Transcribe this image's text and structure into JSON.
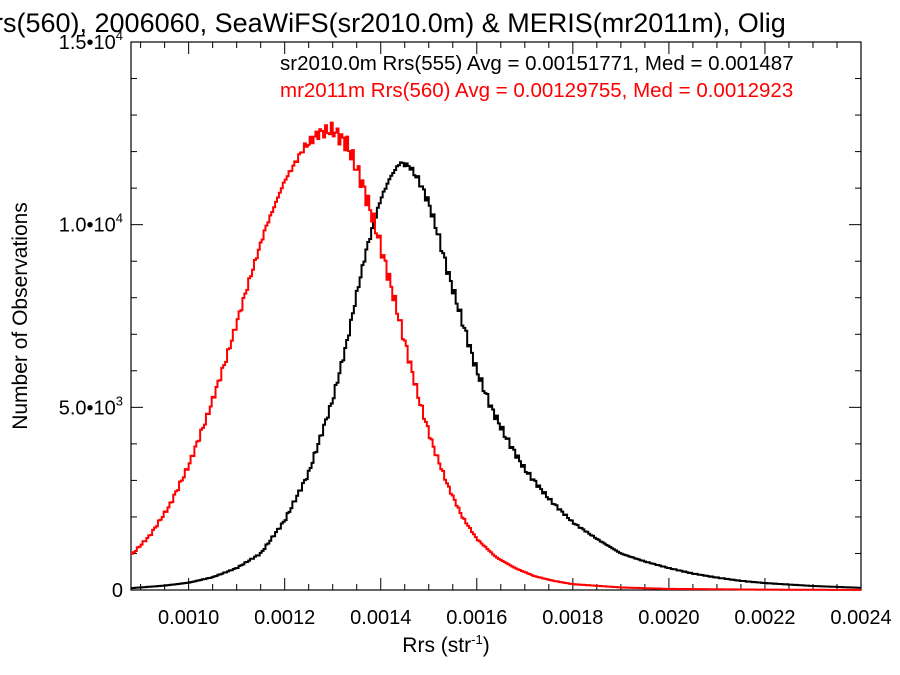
{
  "chart_data": {
    "type": "line",
    "title": "rs(560), 2006060, SeaWiFS(sr2010.0m) & MERIS(mr2011m), Olig",
    "annotations": [
      {
        "text": "sr2010.0m Rrs(555) Avg = 0.00151771, Med = 0.001487",
        "color": "#000000"
      },
      {
        "text": "mr2011m Rrs(560) Avg = 0.00129755, Med = 0.0012923",
        "color": "#ff0000"
      }
    ],
    "xlabel": "Rrs (str",
    "xlabel_sup": "-1",
    "xlabel_tail": ")",
    "ylabel": "Number of Observations",
    "xlim": [
      0.00088,
      0.0024
    ],
    "ylim": [
      0,
      15000
    ],
    "x_ticks": [
      {
        "value": 0.001,
        "label": "0.0010"
      },
      {
        "value": 0.0012,
        "label": "0.0012"
      },
      {
        "value": 0.0014,
        "label": "0.0014"
      },
      {
        "value": 0.0016,
        "label": "0.0016"
      },
      {
        "value": 0.0018,
        "label": "0.0018"
      },
      {
        "value": 0.002,
        "label": "0.0020"
      },
      {
        "value": 0.0022,
        "label": "0.0022"
      },
      {
        "value": 0.0024,
        "label": "0.0024"
      }
    ],
    "y_ticks": [
      {
        "value": 0,
        "label": "0",
        "exp": ""
      },
      {
        "value": 5000,
        "label": "5.0•10",
        "exp": "3"
      },
      {
        "value": 10000,
        "label": "1.0•10",
        "exp": "4"
      },
      {
        "value": 15000,
        "label": "1.5•10",
        "exp": "4"
      }
    ],
    "series": [
      {
        "name": "sr2010.0m Rrs(555)",
        "color": "#000000",
        "points": [
          [
            0.00088,
            50
          ],
          [
            0.00095,
            120
          ],
          [
            0.001,
            200
          ],
          [
            0.00105,
            350
          ],
          [
            0.0011,
            600
          ],
          [
            0.00115,
            1000
          ],
          [
            0.0012,
            1900
          ],
          [
            0.00125,
            3200
          ],
          [
            0.0013,
            5200
          ],
          [
            0.00133,
            6800
          ],
          [
            0.00135,
            8100
          ],
          [
            0.00137,
            9300
          ],
          [
            0.0014,
            10700
          ],
          [
            0.00142,
            11300
          ],
          [
            0.00144,
            11700
          ],
          [
            0.00146,
            11600
          ],
          [
            0.00148,
            11200
          ],
          [
            0.0015,
            10600
          ],
          [
            0.00152,
            9700
          ],
          [
            0.00154,
            8700
          ],
          [
            0.00156,
            7800
          ],
          [
            0.00158,
            6900
          ],
          [
            0.0016,
            6000
          ],
          [
            0.00163,
            5000
          ],
          [
            0.00166,
            4200
          ],
          [
            0.0017,
            3300
          ],
          [
            0.00175,
            2500
          ],
          [
            0.0018,
            1850
          ],
          [
            0.00185,
            1400
          ],
          [
            0.0019,
            1000
          ],
          [
            0.00195,
            780
          ],
          [
            0.002,
            600
          ],
          [
            0.00205,
            450
          ],
          [
            0.0021,
            340
          ],
          [
            0.00215,
            250
          ],
          [
            0.0022,
            190
          ],
          [
            0.0023,
            110
          ],
          [
            0.0024,
            60
          ]
        ]
      },
      {
        "name": "mr2011m Rrs(560)",
        "color": "#ff0000",
        "points": [
          [
            0.00088,
            950
          ],
          [
            0.00092,
            1500
          ],
          [
            0.00096,
            2300
          ],
          [
            0.001,
            3400
          ],
          [
            0.00104,
            4800
          ],
          [
            0.00108,
            6400
          ],
          [
            0.00112,
            8200
          ],
          [
            0.00116,
            9900
          ],
          [
            0.0012,
            11200
          ],
          [
            0.00124,
            12100
          ],
          [
            0.00127,
            12500
          ],
          [
            0.0013,
            12600
          ],
          [
            0.00133,
            12200
          ],
          [
            0.00136,
            11200
          ],
          [
            0.00139,
            9900
          ],
          [
            0.00142,
            8400
          ],
          [
            0.00145,
            6800
          ],
          [
            0.00148,
            5200
          ],
          [
            0.00151,
            3900
          ],
          [
            0.00154,
            2850
          ],
          [
            0.00157,
            2000
          ],
          [
            0.0016,
            1400
          ],
          [
            0.00164,
            900
          ],
          [
            0.00168,
            600
          ],
          [
            0.00172,
            380
          ],
          [
            0.00176,
            250
          ],
          [
            0.0018,
            160
          ],
          [
            0.0019,
            70
          ],
          [
            0.002,
            30
          ],
          [
            0.0022,
            10
          ],
          [
            0.0024,
            2
          ]
        ]
      }
    ]
  }
}
